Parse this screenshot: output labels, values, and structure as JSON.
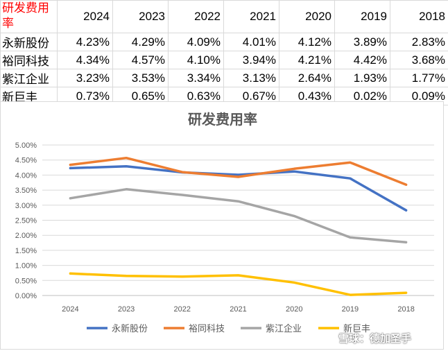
{
  "table": {
    "corner_label": "研发费用率",
    "years": [
      "2024",
      "2023",
      "2022",
      "2021",
      "2020",
      "2019",
      "2018"
    ],
    "rows": [
      {
        "name": "永新股份",
        "values": [
          "4.23%",
          "4.29%",
          "4.09%",
          "4.01%",
          "4.12%",
          "3.89%",
          "2.83%"
        ]
      },
      {
        "name": "裕同科技",
        "values": [
          "4.34%",
          "4.57%",
          "4.10%",
          "3.94%",
          "4.21%",
          "4.42%",
          "3.68%"
        ]
      },
      {
        "name": "紫江企业",
        "values": [
          "3.23%",
          "3.53%",
          "3.34%",
          "3.13%",
          "2.64%",
          "1.93%",
          "1.77%"
        ]
      },
      {
        "name": "新巨丰",
        "values": [
          "0.73%",
          "0.65%",
          "0.63%",
          "0.67%",
          "0.43%",
          "0.02%",
          "0.09%"
        ]
      }
    ]
  },
  "chart_data": {
    "type": "line",
    "title": "研发费用率",
    "categories": [
      "2024",
      "2023",
      "2022",
      "2021",
      "2020",
      "2019",
      "2018"
    ],
    "y_ticks": [
      "0.00%",
      "0.50%",
      "1.00%",
      "1.50%",
      "2.00%",
      "2.50%",
      "3.00%",
      "3.50%",
      "4.00%",
      "4.50%",
      "5.00%"
    ],
    "ylim": [
      0,
      5
    ],
    "y_unit": "%",
    "grid": true,
    "legend_position": "bottom",
    "series": [
      {
        "name": "永新股份",
        "color": "#4472C4",
        "values": [
          4.23,
          4.29,
          4.09,
          4.01,
          4.12,
          3.89,
          2.83
        ]
      },
      {
        "name": "裕同科技",
        "color": "#ED7D31",
        "values": [
          4.34,
          4.57,
          4.1,
          3.94,
          4.21,
          4.42,
          3.68
        ]
      },
      {
        "name": "紫江企业",
        "color": "#A5A5A5",
        "values": [
          3.23,
          3.53,
          3.34,
          3.13,
          2.64,
          1.93,
          1.77
        ]
      },
      {
        "name": "新巨丰",
        "color": "#FFC000",
        "values": [
          0.73,
          0.65,
          0.63,
          0.67,
          0.43,
          0.02,
          0.09
        ]
      }
    ]
  },
  "watermark": "雪球：德加圣手"
}
